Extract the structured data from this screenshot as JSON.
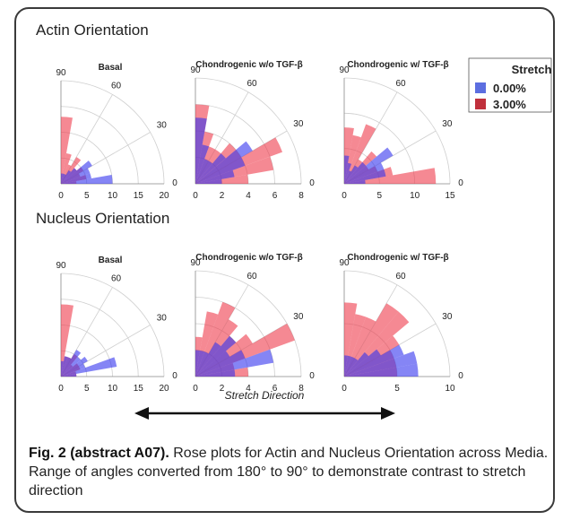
{
  "sections": [
    {
      "title": "Actin Orientation"
    },
    {
      "title": "Nucleus Orientation"
    }
  ],
  "legend": {
    "title": "Stretch",
    "items": [
      {
        "label": "0.00%",
        "color": "#5c6ee0"
      },
      {
        "label": "3.00%",
        "color": "#c0303c"
      }
    ]
  },
  "stretch_direction_label": "Stretch Direction",
  "caption": {
    "label": "Fig. 2 (abstract A07).",
    "text": "Rose plots for Actin and Nucleus Orientation across Media. Range of angles converted from 180° to 90° to demonstrate contrast to stretch direction"
  },
  "colors": {
    "stretch_0": "#3333ee",
    "stretch_3": "#ee3b4b"
  },
  "angle_ticks": [
    "90",
    "60",
    "30",
    "0"
  ],
  "chart_data": [
    {
      "type": "rose",
      "section": "Actin Orientation",
      "title": "Basal",
      "radial_ticks": [
        "0",
        "5",
        "10",
        "15",
        "20"
      ],
      "rmax": 20,
      "bin_width_deg": 10,
      "series": [
        {
          "name": "0.00%",
          "bins_deg": [
            0,
            10,
            20,
            30,
            40,
            50,
            60,
            70,
            80
          ],
          "values": [
            10,
            6,
            6,
            7,
            4,
            3,
            2,
            2,
            2
          ]
        },
        {
          "name": "3.00%",
          "bins_deg": [
            0,
            10,
            20,
            30,
            40,
            50,
            60,
            70,
            80
          ],
          "values": [
            3,
            5,
            4,
            5,
            4,
            6,
            4,
            6,
            13
          ]
        }
      ]
    },
    {
      "type": "rose",
      "section": "Actin Orientation",
      "title": "Chondrogenic w/o TGF-β",
      "radial_ticks": [
        "0",
        "2",
        "4",
        "6",
        "8"
      ],
      "rmax": 8,
      "bin_width_deg": 10,
      "series": [
        {
          "name": "0.00%",
          "bins_deg": [
            0,
            10,
            20,
            30,
            40,
            50,
            60,
            70,
            80
          ],
          "values": [
            2,
            3,
            4,
            5,
            3,
            2,
            2,
            3,
            5
          ]
        },
        {
          "name": "3.00%",
          "bins_deg": [
            0,
            10,
            20,
            30,
            40,
            50,
            60,
            70,
            80
          ],
          "values": [
            4,
            6,
            7,
            4,
            4,
            3,
            3,
            4,
            6
          ]
        }
      ]
    },
    {
      "type": "rose",
      "section": "Actin Orientation",
      "title": "Chondrogenic w/ TGF-β",
      "radial_ticks": [
        "0",
        "5",
        "10",
        "15"
      ],
      "rmax": 15,
      "bin_width_deg": 10,
      "series": [
        {
          "name": "0.00%",
          "bins_deg": [
            0,
            10,
            20,
            30,
            40,
            50,
            60,
            70,
            80
          ],
          "values": [
            3,
            6,
            6,
            8,
            4,
            3,
            2,
            3,
            4
          ]
        },
        {
          "name": "3.00%",
          "bins_deg": [
            0,
            10,
            20,
            30,
            40,
            50,
            60,
            70,
            80
          ],
          "values": [
            13,
            7,
            5,
            4,
            6,
            4,
            9,
            7,
            8
          ]
        }
      ]
    },
    {
      "type": "rose",
      "section": "Nucleus Orientation",
      "title": "Basal",
      "radial_ticks": [
        "0",
        "5",
        "10",
        "15",
        "20"
      ],
      "rmax": 20,
      "bin_width_deg": 10,
      "series": [
        {
          "name": "0.00%",
          "bins_deg": [
            0,
            10,
            20,
            30,
            40,
            50,
            60,
            70,
            80
          ],
          "values": [
            3,
            11,
            5,
            6,
            5,
            6,
            4,
            4,
            3
          ]
        },
        {
          "name": "3.00%",
          "bins_deg": [
            0,
            10,
            20,
            30,
            40,
            50,
            60,
            70,
            80
          ],
          "values": [
            3,
            3,
            4,
            4,
            3,
            5,
            4,
            4,
            14
          ]
        }
      ]
    },
    {
      "type": "rose",
      "section": "Nucleus Orientation",
      "title": "Chondrogenic w/o TGF-β",
      "radial_ticks": [
        "0",
        "2",
        "4",
        "6",
        "8"
      ],
      "rmax": 8,
      "bin_width_deg": 10,
      "series": [
        {
          "name": "0.00%",
          "bins_deg": [
            0,
            10,
            20,
            30,
            40,
            50,
            60,
            70,
            80
          ],
          "values": [
            3,
            6,
            4,
            3,
            4,
            3,
            2,
            2,
            2
          ]
        },
        {
          "name": "3.00%",
          "bins_deg": [
            0,
            10,
            20,
            30,
            40,
            50,
            60,
            70,
            80
          ],
          "values": [
            4,
            3,
            8,
            5,
            4,
            5,
            6,
            5,
            3
          ]
        }
      ]
    },
    {
      "type": "rose",
      "section": "Nucleus Orientation",
      "title": "Chondrogenic w/ TGF-β",
      "radial_ticks": [
        "0",
        "5",
        "10"
      ],
      "rmax": 10,
      "bin_width_deg": 10,
      "series": [
        {
          "name": "0.00%",
          "bins_deg": [
            0,
            10,
            20,
            30,
            40,
            50,
            60,
            70,
            80
          ],
          "values": [
            7,
            7,
            6,
            4,
            3,
            2,
            2,
            2,
            2
          ]
        },
        {
          "name": "3.00%",
          "bins_deg": [
            0,
            10,
            20,
            30,
            40,
            50,
            60,
            70,
            80
          ],
          "values": [
            5,
            5,
            5,
            6,
            8,
            8,
            6,
            6,
            7
          ]
        }
      ]
    }
  ]
}
